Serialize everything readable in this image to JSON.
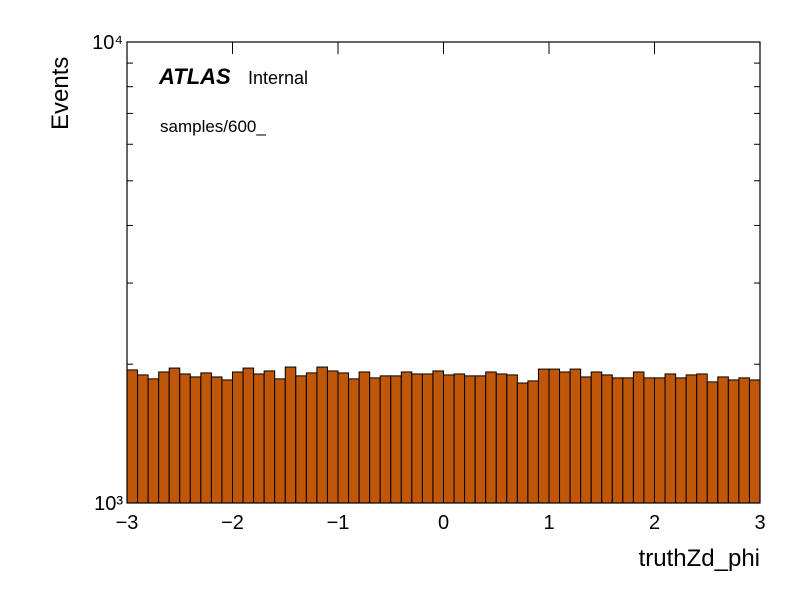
{
  "chart_data": {
    "type": "histogram",
    "xlabel": "truthZd_phi",
    "ylabel": "Events",
    "experiment": "ATLAS",
    "status": "Internal",
    "annotation": "samples/600_",
    "color": "#c0560a",
    "edgecolor": "#000000",
    "log_y": true,
    "bins": [
      -3,
      -2.9,
      -2.8,
      -2.7,
      -2.6,
      -2.5,
      -2.4,
      -2.3,
      -2.2,
      -2.1,
      -2,
      -1.9,
      -1.8,
      -1.7,
      -1.6,
      -1.5,
      -1.4,
      -1.3,
      -1.2,
      -1.1,
      -1,
      -0.9,
      -0.8,
      -0.7,
      -0.6,
      -0.5,
      -0.4,
      -0.3,
      -0.2,
      -0.1,
      0,
      0.1,
      0.2,
      0.3,
      0.4,
      0.5,
      0.6,
      0.7,
      0.8,
      0.9,
      1,
      1.1,
      1.2,
      1.3,
      1.4,
      1.5,
      1.6,
      1.7,
      1.8,
      1.9,
      2,
      2.1,
      2.2,
      2.3,
      2.4,
      2.5,
      2.6,
      2.7,
      2.8,
      2.9,
      3
    ],
    "values": [
      1944,
      1896,
      1859,
      1924,
      1962,
      1905,
      1877,
      1915,
      1877,
      1849,
      1924,
      1962,
      1905,
      1934,
      1859,
      1972,
      1887,
      1915,
      1972,
      1934,
      1915,
      1859,
      1924,
      1868,
      1887,
      1887,
      1924,
      1905,
      1905,
      1934,
      1896,
      1905,
      1887,
      1887,
      1924,
      1905,
      1896,
      1821,
      1840,
      1952,
      1952,
      1924,
      1952,
      1877,
      1924,
      1896,
      1868,
      1868,
      1924,
      1868,
      1868,
      1905,
      1868,
      1896,
      1905,
      1831,
      1877,
      1849,
      1868,
      1849
    ],
    "xlim": [
      -3,
      3
    ],
    "ylim": [
      1000,
      10000
    ],
    "xticks": [
      {
        "value": -3,
        "label": "−3"
      },
      {
        "value": -2,
        "label": "−2"
      },
      {
        "value": -1,
        "label": "−1"
      },
      0,
      1,
      2,
      3
    ],
    "yticks": [
      {
        "value": 1000,
        "label": "10³"
      },
      {
        "value": 10000,
        "label": "10⁴"
      }
    ],
    "yminorticks": [
      2000,
      3000,
      4000,
      5000,
      6000,
      7000,
      8000,
      9000
    ]
  }
}
